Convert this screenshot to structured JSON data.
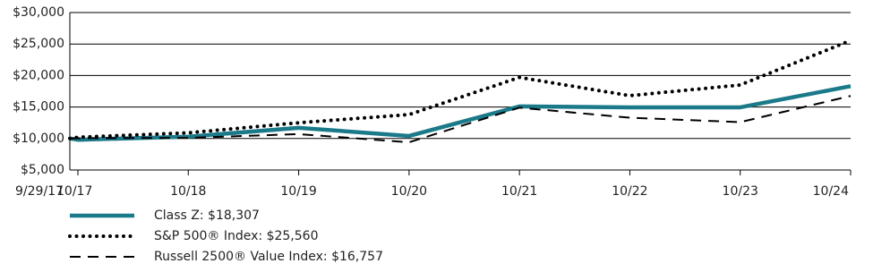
{
  "chart_data": {
    "type": "line",
    "categories": [
      "9/29/17",
      "10/17",
      "10/18",
      "10/19",
      "10/20",
      "10/21",
      "10/22",
      "10/23",
      "10/24"
    ],
    "series": [
      {
        "name": "Class Z: $18,307",
        "color": "#1b7a8a",
        "style": "solid",
        "values": [
          10000,
          9800,
          10300,
          11700,
          10400,
          15100,
          14950,
          14950,
          18307
        ]
      },
      {
        "name": "S&P 500® Index: $25,560",
        "color": "#000000",
        "style": "dotted",
        "values": [
          10000,
          10200,
          10900,
          12500,
          13800,
          19700,
          16800,
          18500,
          25560
        ]
      },
      {
        "name": "Russell 2500® Value Index: $16,757",
        "color": "#000000",
        "style": "dashed",
        "values": [
          10000,
          10050,
          10100,
          10700,
          9400,
          14900,
          13300,
          12600,
          16757
        ]
      }
    ],
    "ylim": [
      5000,
      30000
    ],
    "yticks": [
      {
        "value": 5000,
        "label": "$5,000"
      },
      {
        "value": 10000,
        "label": "$10,000"
      },
      {
        "value": 15000,
        "label": "$15,000"
      },
      {
        "value": 20000,
        "label": "$20,000"
      },
      {
        "value": 25000,
        "label": "$25,000"
      },
      {
        "value": 30000,
        "label": "$30,000"
      }
    ],
    "grid": true
  }
}
